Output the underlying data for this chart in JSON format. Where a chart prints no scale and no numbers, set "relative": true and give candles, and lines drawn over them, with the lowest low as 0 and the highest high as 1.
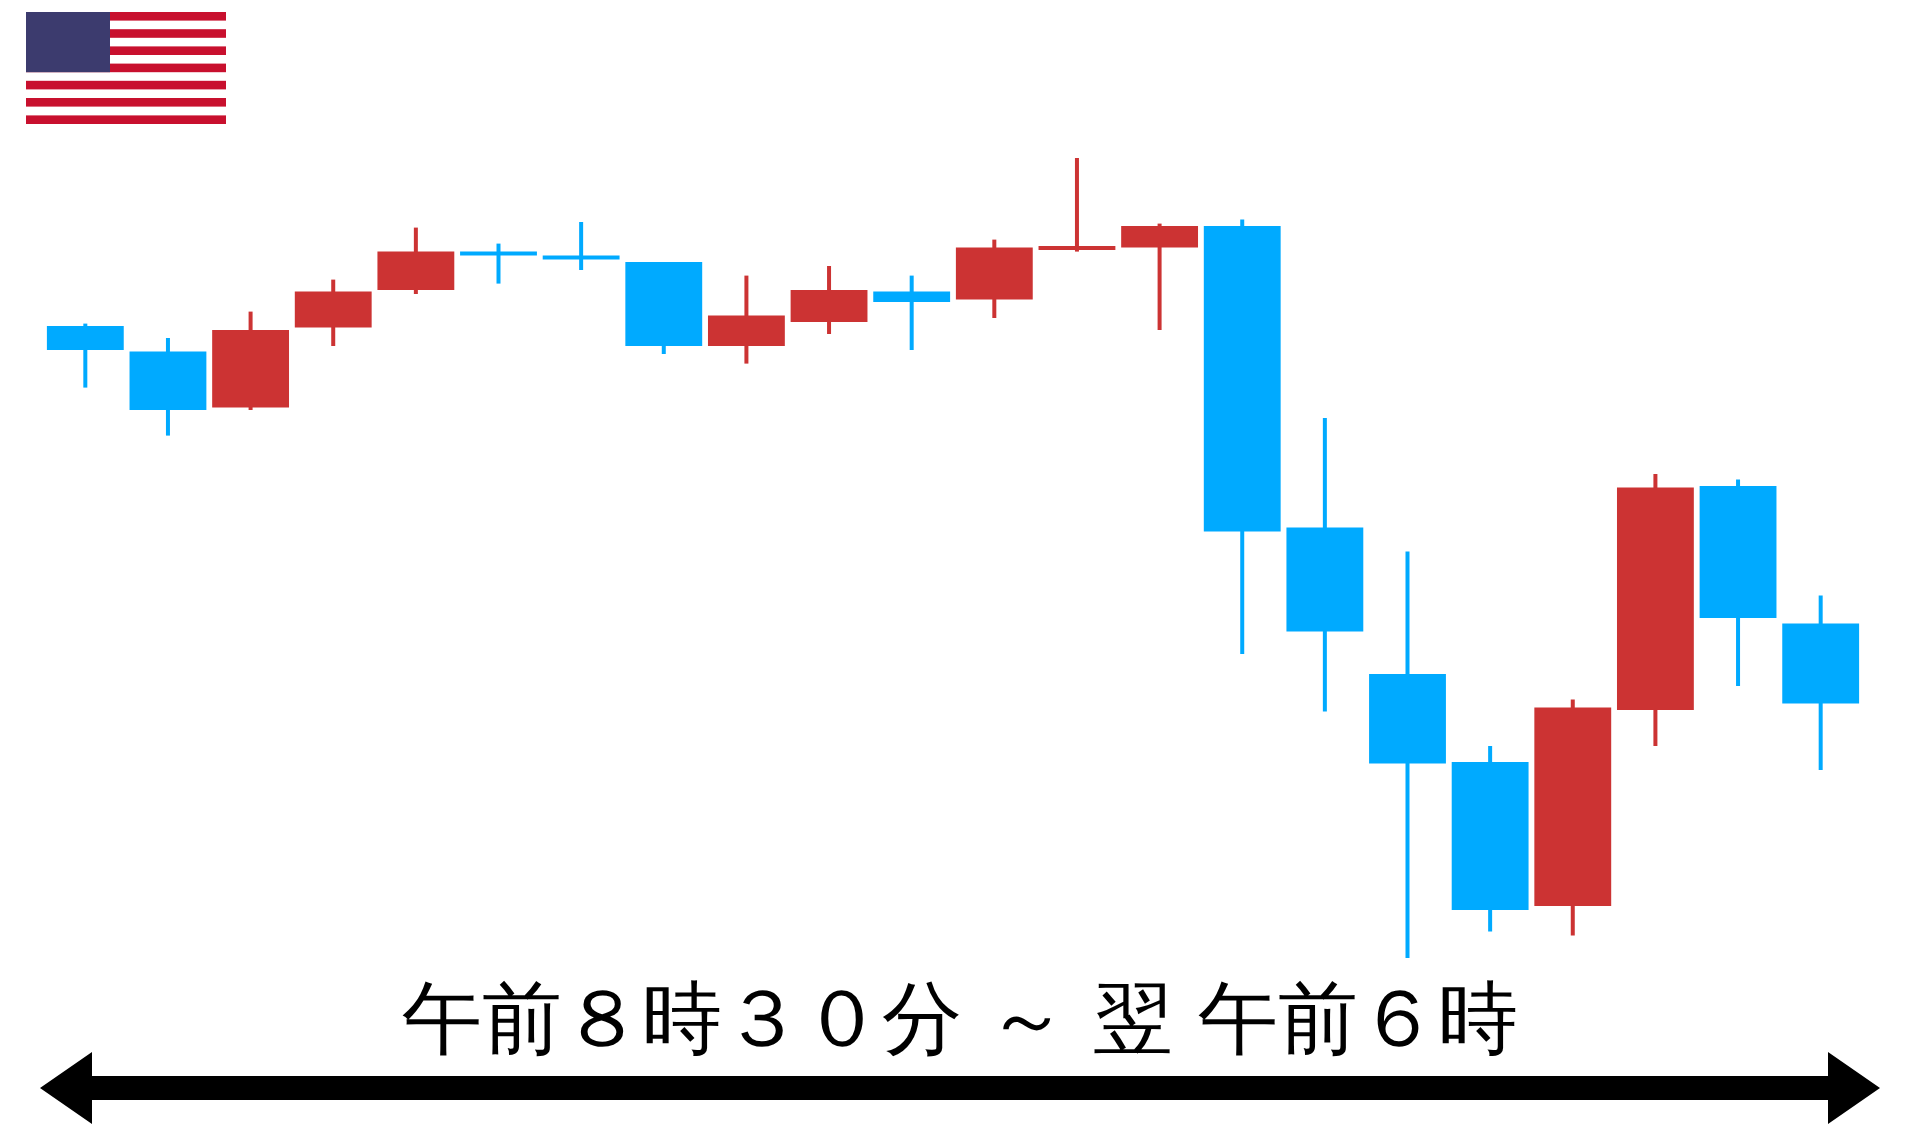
{
  "chart_data": {
    "type": "candlestick",
    "relative": true,
    "xlabel": "午前８時３０分 ～ 翌 午前６時",
    "categories": [
      null,
      null,
      null,
      null,
      null,
      null,
      null,
      null,
      null,
      null,
      null,
      null,
      null,
      null,
      null,
      null,
      null,
      null,
      null,
      null,
      null,
      null
    ],
    "ohlc": [
      [
        0.79,
        0.793,
        0.713,
        0.76
      ],
      [
        0.758,
        0.775,
        0.653,
        0.685
      ],
      [
        0.688,
        0.808,
        0.685,
        0.785
      ],
      [
        0.788,
        0.848,
        0.765,
        0.833
      ],
      [
        0.835,
        0.913,
        0.83,
        0.883
      ],
      [
        0.883,
        0.893,
        0.843,
        0.878
      ],
      [
        0.878,
        0.92,
        0.86,
        0.873
      ],
      [
        0.87,
        0.87,
        0.755,
        0.765
      ],
      [
        0.765,
        0.853,
        0.743,
        0.803
      ],
      [
        0.795,
        0.865,
        0.78,
        0.835
      ],
      [
        0.833,
        0.853,
        0.76,
        0.82
      ],
      [
        0.823,
        0.898,
        0.8,
        0.888
      ],
      [
        0.885,
        1,
        0.883,
        0.888
      ],
      [
        0.888,
        0.918,
        0.785,
        0.915
      ],
      [
        0.915,
        0.923,
        0.38,
        0.533
      ],
      [
        0.538,
        0.675,
        0.308,
        0.408
      ],
      [
        0.355,
        0.508,
        0,
        0.243
      ],
      [
        0.245,
        0.265,
        0.033,
        0.06
      ],
      [
        0.065,
        0.323,
        0.028,
        0.313
      ],
      [
        0.31,
        0.605,
        0.265,
        0.588
      ],
      [
        0.59,
        0.598,
        0.34,
        0.425
      ],
      [
        0.418,
        0.453,
        0.235,
        0.318
      ]
    ],
    "colors": [
      "#00aaff",
      "#00aaff",
      "#cc3333",
      "#cc3333",
      "#cc3333",
      "#00aaff",
      "#00aaff",
      "#00aaff",
      "#cc3333",
      "#cc3333",
      "#00aaff",
      "#cc3333",
      "#cc3333",
      "#cc3333",
      "#00aaff",
      "#00aaff",
      "#00aaff",
      "#00aaff",
      "#cc3333",
      "#cc3333",
      "#00aaff",
      "#00aaff"
    ]
  }
}
